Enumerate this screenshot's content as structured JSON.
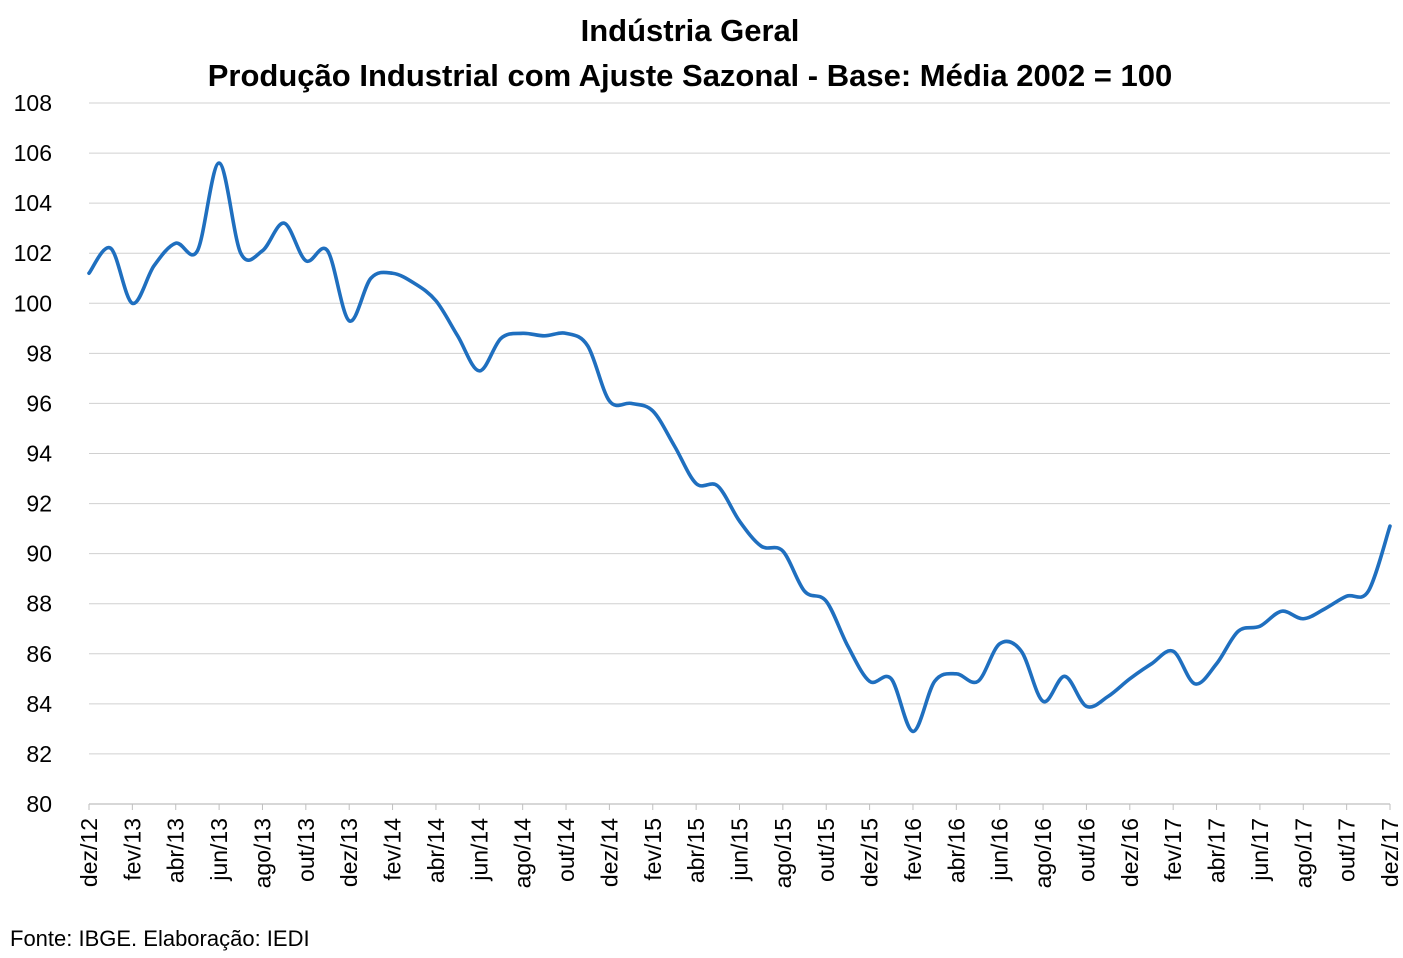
{
  "chart_data": {
    "type": "line",
    "title": "Indústria Geral",
    "subtitle": "Produção Industrial com Ajuste Sazonal - Base: Média 2002 = 100",
    "xlabel": "",
    "ylabel": "",
    "ylim": [
      80,
      108
    ],
    "yticks": [
      80,
      82,
      84,
      86,
      88,
      90,
      92,
      94,
      96,
      98,
      100,
      102,
      104,
      106,
      108
    ],
    "grid": true,
    "legend": "none",
    "x_tick_labels": [
      "dez/12",
      "fev/13",
      "abr/13",
      "jun/13",
      "ago/13",
      "out/13",
      "dez/13",
      "fev/14",
      "abr/14",
      "jun/14",
      "ago/14",
      "out/14",
      "dez/14",
      "fev/15",
      "abr/15",
      "jun/15",
      "ago/15",
      "out/15",
      "dez/15",
      "fev/16",
      "abr/16",
      "jun/16",
      "ago/16",
      "out/16",
      "dez/16",
      "fev/17",
      "abr/17",
      "jun/17",
      "ago/17",
      "out/17",
      "dez/17"
    ],
    "x": [
      "dez/12",
      "jan/13",
      "fev/13",
      "mar/13",
      "abr/13",
      "mai/13",
      "jun/13",
      "jul/13",
      "ago/13",
      "set/13",
      "out/13",
      "nov/13",
      "dez/13",
      "jan/14",
      "fev/14",
      "mar/14",
      "abr/14",
      "mai/14",
      "jun/14",
      "jul/14",
      "ago/14",
      "set/14",
      "out/14",
      "nov/14",
      "dez/14",
      "jan/15",
      "fev/15",
      "mar/15",
      "abr/15",
      "mai/15",
      "jun/15",
      "jul/15",
      "ago/15",
      "set/15",
      "out/15",
      "nov/15",
      "dez/15",
      "jan/16",
      "fev/16",
      "mar/16",
      "abr/16",
      "mai/16",
      "jun/16",
      "jul/16",
      "ago/16",
      "set/16",
      "out/16",
      "nov/16",
      "dez/16",
      "jan/17",
      "fev/17",
      "mar/17",
      "abr/17",
      "mai/17",
      "jun/17",
      "jul/17",
      "ago/17",
      "set/17",
      "out/17",
      "nov/17",
      "dez/17"
    ],
    "series": [
      {
        "color": "#1F6FBF",
        "values": [
          101.2,
          102.2,
          100.0,
          101.5,
          102.4,
          102.1,
          105.6,
          102.0,
          102.1,
          103.2,
          101.7,
          102.1,
          99.3,
          101.0,
          101.2,
          100.8,
          100.1,
          98.7,
          97.3,
          98.6,
          98.8,
          98.7,
          98.8,
          98.3,
          96.1,
          96.0,
          95.7,
          94.3,
          92.8,
          92.7,
          91.3,
          90.3,
          90.1,
          88.5,
          88.1,
          86.3,
          84.9,
          85.0,
          82.9,
          84.9,
          85.2,
          84.9,
          86.4,
          86.1,
          84.1,
          85.1,
          83.9,
          84.3,
          85.0,
          85.6,
          86.1,
          84.8,
          85.6,
          86.9,
          87.1,
          87.7,
          87.4,
          87.8,
          88.3,
          88.5,
          91.1
        ]
      }
    ]
  },
  "source_text": "Fonte: IBGE. Elaboração: IEDI"
}
